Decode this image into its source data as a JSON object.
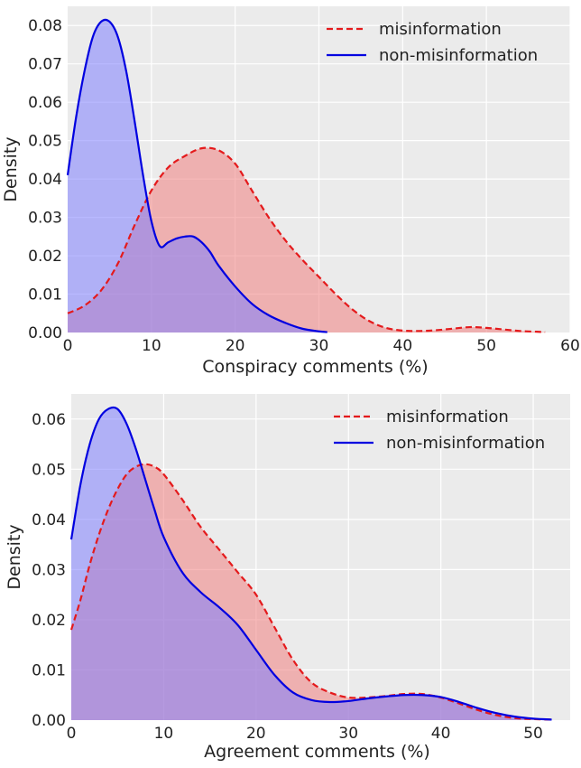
{
  "colors": {
    "background": "#ebebeb",
    "grid": "#ffffff",
    "misinformation_line": "#e41a1c",
    "misinformation_fill": "#f08080",
    "non_misinformation_line": "#0000e0",
    "non_misinformation_fill": "#8080ff"
  },
  "chart_data": [
    {
      "type": "area",
      "xlabel": "Conspiracy comments (%)",
      "ylabel": "Density",
      "xlim": [
        0,
        60
      ],
      "ylim": [
        0,
        0.085
      ],
      "x_ticks": [
        0,
        10,
        20,
        30,
        40,
        50,
        60
      ],
      "x_tick_labels": [
        "0",
        "10",
        "20",
        "30",
        "40",
        "50",
        "60"
      ],
      "y_ticks": [
        0,
        0.01,
        0.02,
        0.03,
        0.04,
        0.05,
        0.06,
        0.07,
        0.08
      ],
      "y_tick_labels": [
        "0.00",
        "0.01",
        "0.02",
        "0.03",
        "0.04",
        "0.05",
        "0.06",
        "0.07",
        "0.08"
      ],
      "grid": true,
      "legend": "top-right",
      "series": [
        {
          "name": "misinformation",
          "style": "dashed",
          "points": [
            [
              0,
              0.005
            ],
            [
              2,
              0.007
            ],
            [
              4,
              0.011
            ],
            [
              6,
              0.018
            ],
            [
              8,
              0.028
            ],
            [
              10,
              0.037
            ],
            [
              12,
              0.043
            ],
            [
              14,
              0.046
            ],
            [
              16,
              0.048
            ],
            [
              18,
              0.0475
            ],
            [
              20,
              0.044
            ],
            [
              22,
              0.037
            ],
            [
              24,
              0.03
            ],
            [
              26,
              0.024
            ],
            [
              28,
              0.019
            ],
            [
              30,
              0.0145
            ],
            [
              32,
              0.01
            ],
            [
              34,
              0.006
            ],
            [
              36,
              0.003
            ],
            [
              38,
              0.0012
            ],
            [
              40,
              0.0005
            ],
            [
              42,
              0.0004
            ],
            [
              44,
              0.0006
            ],
            [
              46,
              0.001
            ],
            [
              48,
              0.0014
            ],
            [
              50,
              0.0012
            ],
            [
              52,
              0.0008
            ],
            [
              54,
              0.0004
            ],
            [
              56,
              0.0002
            ],
            [
              57,
              0.0001
            ]
          ]
        },
        {
          "name": "non-misinformation",
          "style": "solid",
          "points": [
            [
              0,
              0.041
            ],
            [
              1,
              0.056
            ],
            [
              2,
              0.068
            ],
            [
              3,
              0.077
            ],
            [
              4,
              0.081
            ],
            [
              5,
              0.081
            ],
            [
              6,
              0.077
            ],
            [
              7,
              0.068
            ],
            [
              8,
              0.055
            ],
            [
              9,
              0.041
            ],
            [
              10,
              0.029
            ],
            [
              11,
              0.0225
            ],
            [
              12,
              0.0235
            ],
            [
              13,
              0.0245
            ],
            [
              14,
              0.025
            ],
            [
              15,
              0.025
            ],
            [
              16,
              0.0235
            ],
            [
              17,
              0.021
            ],
            [
              18,
              0.0175
            ],
            [
              20,
              0.012
            ],
            [
              22,
              0.0075
            ],
            [
              24,
              0.0045
            ],
            [
              26,
              0.0025
            ],
            [
              28,
              0.001
            ],
            [
              30,
              0.0003
            ],
            [
              31,
              0.0001
            ]
          ]
        }
      ]
    },
    {
      "type": "area",
      "xlabel": "Agreement comments (%)",
      "ylabel": "Density",
      "xlim": [
        0,
        54
      ],
      "ylim": [
        0,
        0.065
      ],
      "x_ticks": [
        0,
        10,
        20,
        30,
        40,
        50
      ],
      "x_tick_labels": [
        "0",
        "10",
        "20",
        "30",
        "40",
        "50"
      ],
      "y_ticks": [
        0,
        0.01,
        0.02,
        0.03,
        0.04,
        0.05,
        0.06
      ],
      "y_tick_labels": [
        "0.00",
        "0.01",
        "0.02",
        "0.03",
        "0.04",
        "0.05",
        "0.06"
      ],
      "grid": true,
      "legend": "top-right",
      "series": [
        {
          "name": "misinformation",
          "style": "dashed",
          "points": [
            [
              0,
              0.018
            ],
            [
              1,
              0.024
            ],
            [
              2,
              0.031
            ],
            [
              3,
              0.037
            ],
            [
              4,
              0.042
            ],
            [
              5,
              0.046
            ],
            [
              6,
              0.049
            ],
            [
              7,
              0.0505
            ],
            [
              8,
              0.051
            ],
            [
              9,
              0.0505
            ],
            [
              10,
              0.049
            ],
            [
              12,
              0.044
            ],
            [
              14,
              0.0385
            ],
            [
              16,
              0.034
            ],
            [
              18,
              0.0295
            ],
            [
              20,
              0.025
            ],
            [
              22,
              0.0185
            ],
            [
              24,
              0.012
            ],
            [
              26,
              0.0075
            ],
            [
              28,
              0.0055
            ],
            [
              30,
              0.0045
            ],
            [
              32,
              0.0045
            ],
            [
              34,
              0.0048
            ],
            [
              36,
              0.0052
            ],
            [
              38,
              0.0052
            ],
            [
              40,
              0.0045
            ],
            [
              42,
              0.0033
            ],
            [
              44,
              0.002
            ],
            [
              46,
              0.001
            ],
            [
              48,
              0.0004
            ],
            [
              50,
              0.0002
            ],
            [
              52,
              0.0001
            ]
          ]
        },
        {
          "name": "non-misinformation",
          "style": "solid",
          "points": [
            [
              0,
              0.036
            ],
            [
              1,
              0.047
            ],
            [
              2,
              0.055
            ],
            [
              3,
              0.06
            ],
            [
              4,
              0.062
            ],
            [
              5,
              0.062
            ],
            [
              6,
              0.059
            ],
            [
              7,
              0.054
            ],
            [
              8,
              0.048
            ],
            [
              9,
              0.042
            ],
            [
              10,
              0.0365
            ],
            [
              12,
              0.0295
            ],
            [
              14,
              0.0255
            ],
            [
              16,
              0.0225
            ],
            [
              18,
              0.019
            ],
            [
              20,
              0.014
            ],
            [
              22,
              0.009
            ],
            [
              24,
              0.0055
            ],
            [
              26,
              0.004
            ],
            [
              28,
              0.0036
            ],
            [
              30,
              0.0038
            ],
            [
              32,
              0.0043
            ],
            [
              34,
              0.0047
            ],
            [
              36,
              0.005
            ],
            [
              38,
              0.005
            ],
            [
              40,
              0.0046
            ],
            [
              42,
              0.0036
            ],
            [
              44,
              0.0024
            ],
            [
              46,
              0.0014
            ],
            [
              48,
              0.0007
            ],
            [
              50,
              0.0003
            ],
            [
              52,
              0.0001
            ]
          ]
        }
      ]
    }
  ]
}
